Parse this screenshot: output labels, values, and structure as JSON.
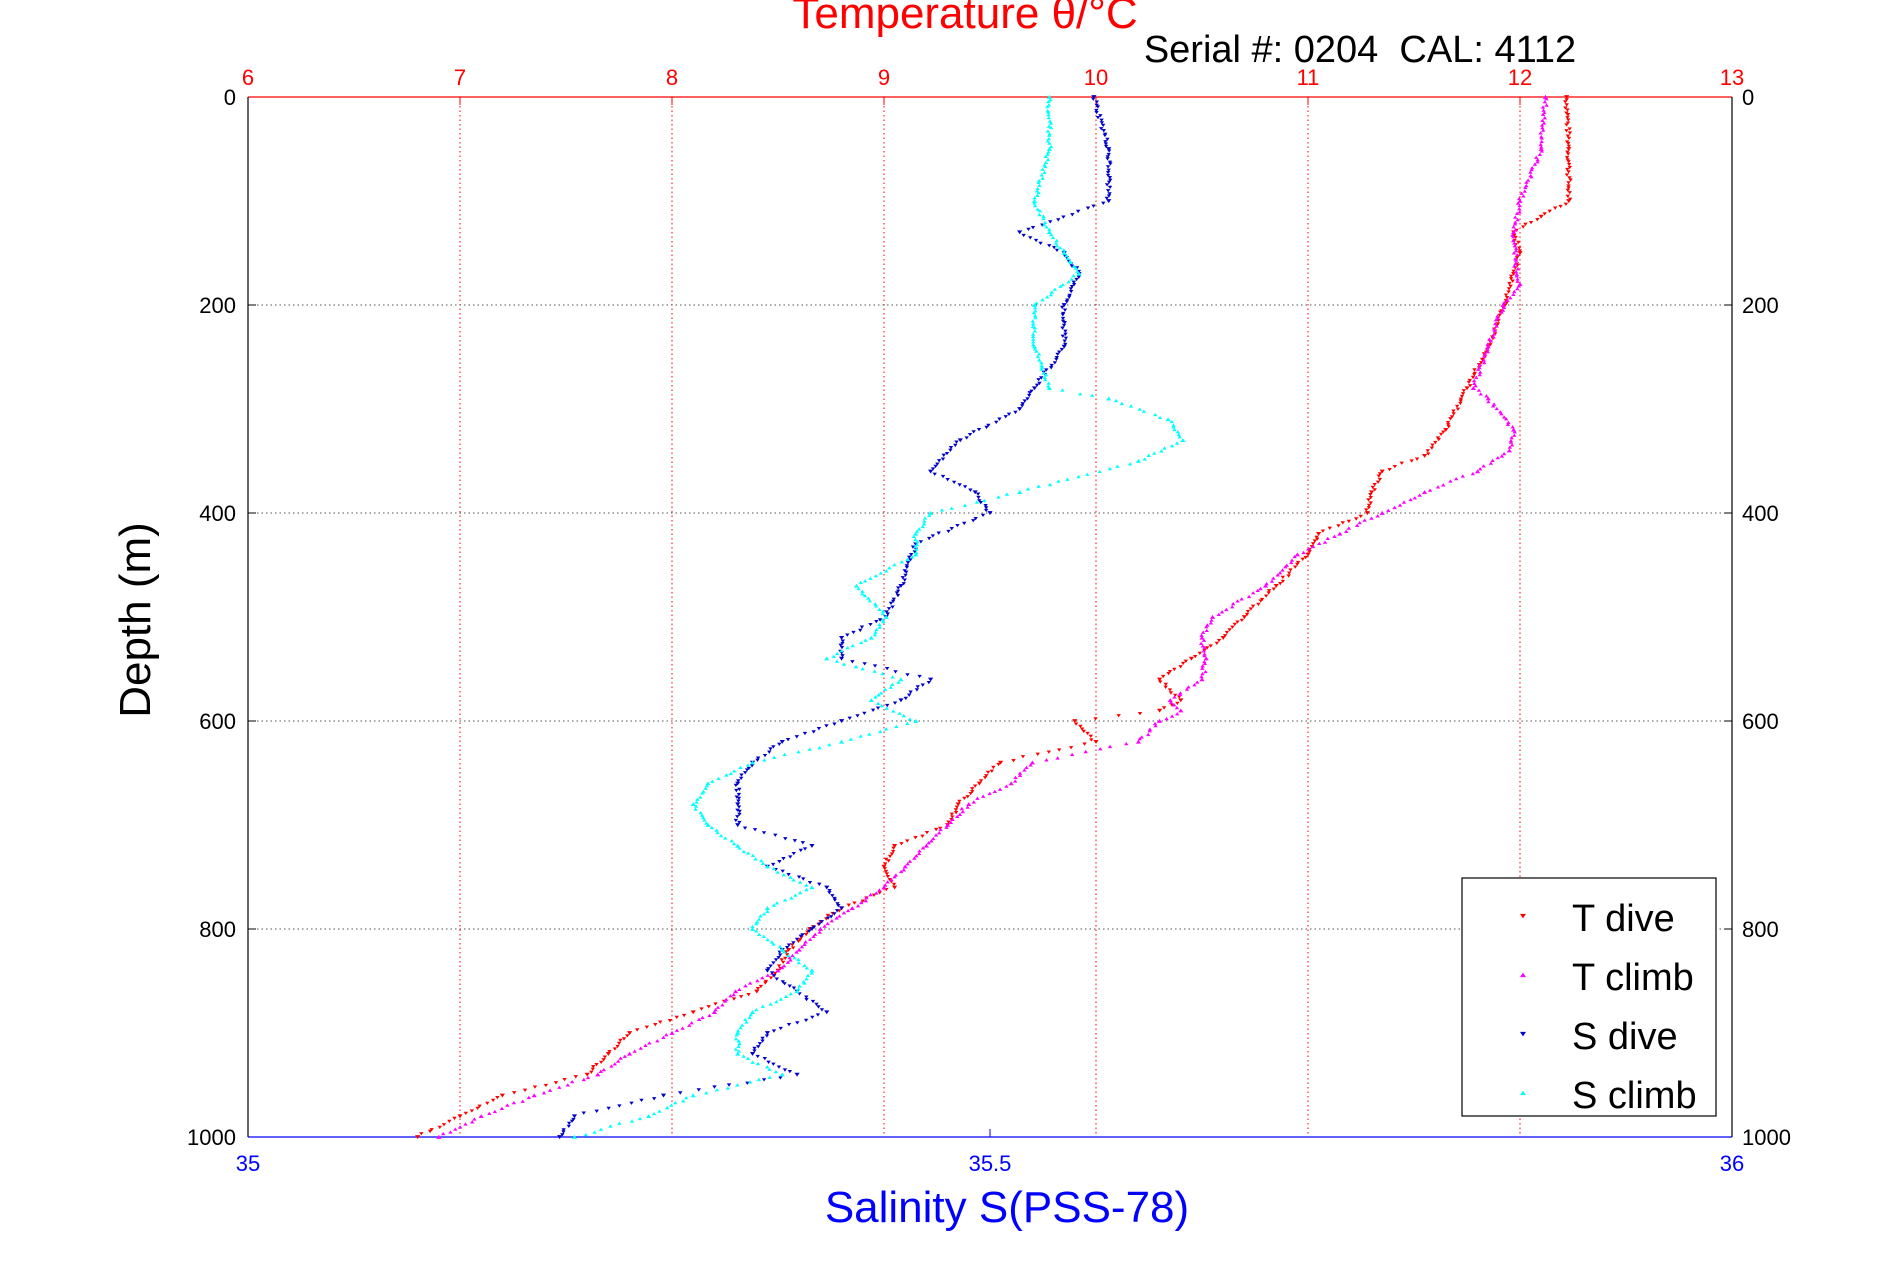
{
  "chart_data": {
    "type": "scatter",
    "title": "Temperature θ/°C",
    "subtitle": "Serial #: 0204  CAL: 4112",
    "ylabel": "Depth (m)",
    "xlabel_bottom": "Salinity S(PSS-78)",
    "xlim_top": [
      6,
      13
    ],
    "xlim_bottom": [
      35,
      36
    ],
    "ylim": [
      0,
      1000
    ],
    "y_reversed": true,
    "top_ticks": [
      "6",
      "7",
      "8",
      "9",
      "10",
      "11",
      "12",
      "13"
    ],
    "bottom_ticks": [
      "35",
      "35.5",
      "36"
    ],
    "y_ticks": [
      "0",
      "200",
      "400",
      "600",
      "800",
      "1000"
    ],
    "grid": true,
    "legend_position": "bottom-right",
    "colors": {
      "temperature_axis": "#ff0000",
      "salinity_axis": "#0000ff",
      "t_dive": "#ff0000",
      "t_climb": "#ff00ff",
      "s_dive": "#0000cc",
      "s_climb": "#00ffff"
    },
    "series": [
      {
        "name": "T dive",
        "axis": "top",
        "marker": "triangle-down",
        "depth": [
          0,
          50,
          100,
          115,
          130,
          150,
          170,
          200,
          240,
          280,
          320,
          345,
          360,
          380,
          400,
          420,
          440,
          470,
          500,
          520,
          540,
          560,
          580,
          590,
          600,
          620,
          640,
          660,
          680,
          700,
          720,
          740,
          760,
          780,
          800,
          820,
          840,
          860,
          880,
          900,
          920,
          940,
          960,
          980,
          1000
        ],
        "values": [
          12.22,
          12.23,
          12.23,
          12.1,
          11.97,
          12.0,
          11.97,
          11.93,
          11.85,
          11.75,
          11.65,
          11.55,
          11.35,
          11.3,
          11.28,
          11.05,
          11.0,
          10.85,
          10.7,
          10.6,
          10.45,
          10.3,
          10.4,
          10.3,
          9.9,
          10.0,
          9.55,
          9.45,
          9.35,
          9.3,
          9.05,
          9.0,
          9.05,
          8.8,
          8.65,
          8.55,
          8.5,
          8.4,
          8.1,
          7.8,
          7.7,
          7.6,
          7.2,
          7.0,
          6.8
        ]
      },
      {
        "name": "T climb",
        "axis": "top",
        "marker": "triangle-up",
        "depth": [
          0,
          50,
          100,
          130,
          160,
          180,
          200,
          240,
          280,
          290,
          320,
          340,
          360,
          380,
          400,
          420,
          440,
          470,
          500,
          520,
          540,
          560,
          580,
          590,
          600,
          620,
          640,
          660,
          680,
          700,
          720,
          740,
          760,
          780,
          800,
          820,
          840,
          860,
          880,
          900,
          920,
          940,
          960,
          980,
          1000
        ],
        "values": [
          12.12,
          12.1,
          12.0,
          11.97,
          11.98,
          12.0,
          11.92,
          11.85,
          11.78,
          11.85,
          11.97,
          11.95,
          11.8,
          11.55,
          11.35,
          11.15,
          10.95,
          10.8,
          10.55,
          10.5,
          10.52,
          10.5,
          10.35,
          10.4,
          10.3,
          10.2,
          9.7,
          9.6,
          9.4,
          9.3,
          9.2,
          9.1,
          9.0,
          8.85,
          8.7,
          8.6,
          8.5,
          8.3,
          8.2,
          8.0,
          7.8,
          7.65,
          7.35,
          7.1,
          6.9
        ]
      },
      {
        "name": "S dive",
        "axis": "bottom",
        "marker": "triangle-down",
        "depth": [
          0,
          50,
          100,
          130,
          150,
          170,
          200,
          240,
          280,
          300,
          330,
          360,
          380,
          400,
          430,
          470,
          500,
          520,
          540,
          560,
          580,
          600,
          620,
          640,
          660,
          680,
          700,
          720,
          740,
          760,
          780,
          800,
          820,
          840,
          860,
          880,
          900,
          920,
          940,
          960,
          980,
          1000
        ],
        "values": [
          35.57,
          35.58,
          35.58,
          35.52,
          35.55,
          35.56,
          35.55,
          35.55,
          35.53,
          35.52,
          35.48,
          35.46,
          35.49,
          35.5,
          35.45,
          35.44,
          35.43,
          35.4,
          35.4,
          35.46,
          35.44,
          35.4,
          35.36,
          35.34,
          35.33,
          35.33,
          35.33,
          35.38,
          35.35,
          35.39,
          35.4,
          35.38,
          35.36,
          35.35,
          35.37,
          35.39,
          35.35,
          35.34,
          35.37,
          35.28,
          35.22,
          35.21
        ]
      },
      {
        "name": "S climb",
        "axis": "bottom",
        "marker": "triangle-up",
        "depth": [
          0,
          50,
          100,
          130,
          150,
          170,
          200,
          240,
          280,
          290,
          310,
          330,
          350,
          380,
          400,
          420,
          440,
          470,
          500,
          520,
          540,
          560,
          580,
          600,
          620,
          640,
          660,
          680,
          700,
          720,
          740,
          760,
          780,
          800,
          820,
          840,
          860,
          880,
          900,
          920,
          940,
          960,
          980,
          1000
        ],
        "values": [
          35.54,
          35.54,
          35.53,
          35.54,
          35.55,
          35.56,
          35.53,
          35.53,
          35.54,
          35.58,
          35.62,
          35.63,
          35.6,
          35.52,
          35.46,
          35.45,
          35.45,
          35.41,
          35.43,
          35.42,
          35.39,
          35.44,
          35.42,
          35.45,
          35.4,
          35.34,
          35.31,
          35.3,
          35.31,
          35.33,
          35.35,
          35.38,
          35.35,
          35.34,
          35.36,
          35.38,
          35.37,
          35.34,
          35.33,
          35.33,
          35.36,
          35.3,
          35.27,
          35.22
        ]
      }
    ],
    "legend": [
      "T dive",
      "T climb",
      "S dive",
      "S climb"
    ]
  }
}
